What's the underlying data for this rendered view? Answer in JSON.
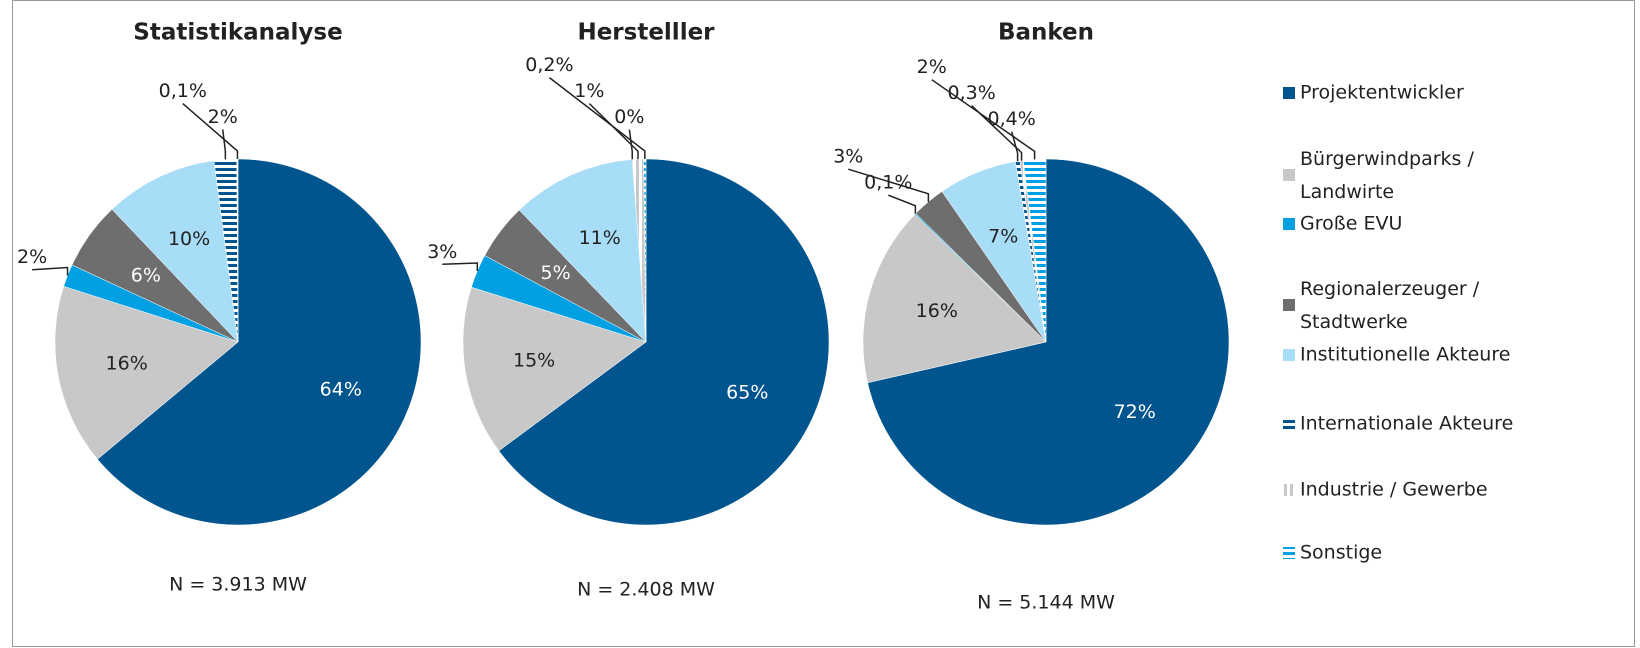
{
  "chart_data": [
    {
      "type": "pie",
      "title": "Statistikanalyse",
      "note": "N = 3.913 MW",
      "categories": [
        "Projektentwickler",
        "Bürgerwindparks / Landwirte",
        "Große EVU",
        "Regionalerzeuger / Stadtwerke",
        "Institutionelle Akteure",
        "Internationale Akteure",
        "Industrie / Gewerbe",
        "Sonstige"
      ],
      "values": [
        64,
        16,
        2,
        6,
        10,
        2,
        0.1,
        null
      ],
      "value_labels": [
        "64%",
        "16%",
        "2%",
        "6%",
        "10%",
        "2%",
        "0,1%",
        null
      ],
      "colors": [
        "#00558f",
        "#c8c8c8",
        "#00a0e3",
        "#6e6e6e",
        "#a8ddf7",
        "#00558f",
        "#c8c8c8",
        "#00a0e3"
      ],
      "hatch": [
        "none",
        "none",
        "none",
        "none",
        "none",
        "horizontal",
        "vertical",
        "horizontal"
      ]
    },
    {
      "type": "pie",
      "title": "Herstelller",
      "note": "N = 2.408 MW",
      "categories": [
        "Projektentwickler",
        "Bürgerwindparks / Landwirte",
        "Große EVU",
        "Regionalerzeuger / Stadtwerke",
        "Institutionelle Akteure",
        "Internationale Akteure",
        "Industrie / Gewerbe",
        "Sonstige"
      ],
      "values": [
        65,
        15,
        3,
        5,
        11,
        0,
        1,
        0.2
      ],
      "value_labels": [
        "65%",
        "15%",
        "3%",
        "5%",
        "11%",
        "0%",
        "1%",
        "0,2%"
      ],
      "colors": [
        "#00558f",
        "#c8c8c8",
        "#00a0e3",
        "#6e6e6e",
        "#a8ddf7",
        "#00558f",
        "#c8c8c8",
        "#00a0e3"
      ],
      "hatch": [
        "none",
        "none",
        "none",
        "none",
        "none",
        "horizontal",
        "vertical",
        "horizontal"
      ]
    },
    {
      "type": "pie",
      "title": "Banken",
      "note": "N = 5.144 MW",
      "categories": [
        "Projektentwickler",
        "Bürgerwindparks / Landwirte",
        "Große EVU",
        "Regionalerzeuger / Stadtwerke",
        "Institutionelle Akteure",
        "Internationale Akteure",
        "Industrie / Gewerbe",
        "Sonstige"
      ],
      "values": [
        72,
        16,
        0.1,
        3,
        7,
        0.4,
        0.3,
        2
      ],
      "value_labels": [
        "72%",
        "16%",
        "0,1%",
        "3%",
        "7%",
        "0,4%",
        "0,3%",
        "2%"
      ],
      "colors": [
        "#00558f",
        "#c8c8c8",
        "#00a0e3",
        "#6e6e6e",
        "#a8ddf7",
        "#00558f",
        "#c8c8c8",
        "#00a0e3"
      ],
      "hatch": [
        "none",
        "none",
        "none",
        "none",
        "none",
        "horizontal",
        "vertical",
        "horizontal"
      ]
    }
  ]
}
